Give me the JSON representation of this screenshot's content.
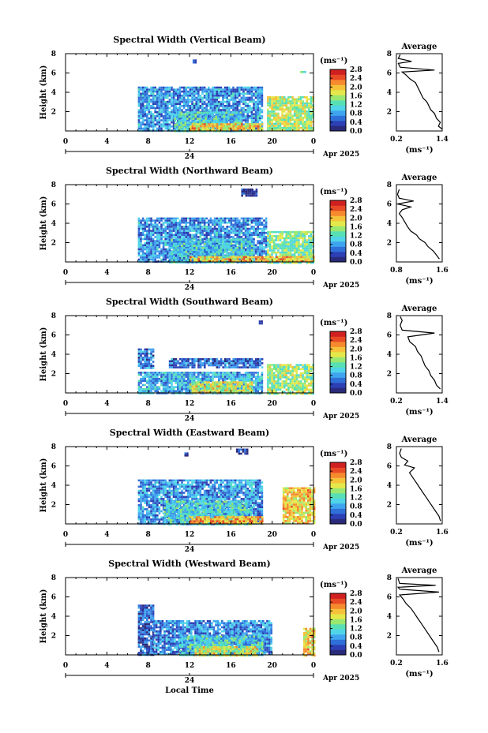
{
  "colors": {
    "scale": [
      "#2a2a7a",
      "#2c3fb4",
      "#2f6fd8",
      "#3fa4ef",
      "#4fd4e8",
      "#58e0b4",
      "#9ae870",
      "#e4e84a",
      "#f5c23a",
      "#f58a2e",
      "#e84a26",
      "#d02020"
    ]
  },
  "figure": {
    "common_xlabel": "Local Time"
  },
  "chart_data": [
    {
      "type": "heatmap",
      "title": "Spectral Width (Vertical Beam)",
      "ylabel": "Height (km)",
      "xlim": [
        0,
        24
      ],
      "ylim": [
        0,
        8
      ],
      "xticks": [
        "0",
        "4",
        "8",
        "12",
        "16",
        "20",
        "0"
      ],
      "yticks": [
        "2",
        "4",
        "6",
        "8"
      ],
      "date_label": "24",
      "month_label": "Apr 2025",
      "colorbar": {
        "unit": "(ms⁻¹)",
        "ticks": [
          "0.0",
          "0.4",
          "0.8",
          "1.2",
          "1.6",
          "2.0",
          "2.4",
          "2.8"
        ],
        "range": [
          0,
          2.8
        ]
      },
      "patches": [
        {
          "t0": 7.0,
          "t1": 19.0,
          "h0": 0.0,
          "h1": 4.6,
          "v": 0.75
        },
        {
          "t0": 10.5,
          "t1": 17.0,
          "h0": 0.0,
          "h1": 2.0,
          "v": 1.1
        },
        {
          "t0": 19.5,
          "t1": 24.0,
          "h0": 0.0,
          "h1": 3.6,
          "v": 1.6
        },
        {
          "t0": 12.0,
          "t1": 19.0,
          "h0": 0.0,
          "h1": 0.8,
          "v": 1.9
        },
        {
          "t0": 12.3,
          "t1": 12.5,
          "h0": 7.1,
          "h1": 7.4,
          "v": 0.2
        },
        {
          "t0": 22.7,
          "t1": 23.2,
          "h0": 6.0,
          "h1": 6.2,
          "v": 1.3
        }
      ],
      "profile": {
        "title": "Average",
        "xlabel": "(ms⁻¹)",
        "xticks": [
          "0.2",
          "1.4"
        ],
        "xlim": [
          0.2,
          1.4
        ],
        "yticks": [
          "2",
          "4",
          "6",
          "8"
        ],
        "ylim": [
          0,
          8
        ],
        "points": [
          [
            1.4,
            0.2
          ],
          [
            1.3,
            0.5
          ],
          [
            1.35,
            0.9
          ],
          [
            1.25,
            1.3
          ],
          [
            1.2,
            1.8
          ],
          [
            1.1,
            2.2
          ],
          [
            1.05,
            2.6
          ],
          [
            1.0,
            3.0
          ],
          [
            0.9,
            3.4
          ],
          [
            0.85,
            3.8
          ],
          [
            0.8,
            4.2
          ],
          [
            0.75,
            4.6
          ],
          [
            0.7,
            5.0
          ],
          [
            0.55,
            5.4
          ],
          [
            0.45,
            5.8
          ],
          [
            0.35,
            6.1
          ],
          [
            1.2,
            6.3
          ],
          [
            0.3,
            6.6
          ],
          [
            0.25,
            7.0
          ],
          [
            0.6,
            7.2
          ],
          [
            0.25,
            7.5
          ],
          [
            0.3,
            7.9
          ]
        ]
      }
    },
    {
      "type": "heatmap",
      "title": "Spectral Width (Northward Beam)",
      "ylabel": "Height (km)",
      "xlim": [
        0,
        24
      ],
      "ylim": [
        0,
        8
      ],
      "xticks": [
        "0",
        "4",
        "8",
        "12",
        "16",
        "20",
        "0"
      ],
      "yticks": [
        "2",
        "4",
        "6",
        "8"
      ],
      "date_label": "24",
      "month_label": "Apr 2025",
      "colorbar": {
        "unit": "(ms⁻¹)",
        "ticks": [
          "0.0",
          "0.4",
          "0.8",
          "1.2",
          "1.6",
          "2.0",
          "2.4",
          "2.8"
        ],
        "range": [
          0,
          2.8
        ]
      },
      "patches": [
        {
          "t0": 7.0,
          "t1": 19.5,
          "h0": 0.0,
          "h1": 4.6,
          "v": 0.75
        },
        {
          "t0": 10.0,
          "t1": 18.0,
          "h0": 0.0,
          "h1": 2.4,
          "v": 1.0
        },
        {
          "t0": 19.5,
          "t1": 24.0,
          "h0": 0.0,
          "h1": 3.2,
          "v": 1.4
        },
        {
          "t0": 12.0,
          "t1": 24.0,
          "h0": 0.0,
          "h1": 0.6,
          "v": 2.0
        },
        {
          "t0": 17.0,
          "t1": 18.5,
          "h0": 6.8,
          "h1": 7.6,
          "v": 0.2
        }
      ],
      "profile": {
        "title": "Average",
        "xlabel": "(ms⁻¹)",
        "xticks": [
          "0.8",
          "1.6"
        ],
        "xlim": [
          0.8,
          1.6
        ],
        "yticks": [
          "2",
          "4",
          "6",
          "8"
        ],
        "ylim": [
          0,
          8
        ],
        "points": [
          [
            1.55,
            0.3
          ],
          [
            1.5,
            0.7
          ],
          [
            1.45,
            1.1
          ],
          [
            1.35,
            1.6
          ],
          [
            1.3,
            2.0
          ],
          [
            1.2,
            2.4
          ],
          [
            1.15,
            2.8
          ],
          [
            1.05,
            3.2
          ],
          [
            1.0,
            3.6
          ],
          [
            0.95,
            4.1
          ],
          [
            0.9,
            4.6
          ],
          [
            0.85,
            5.0
          ],
          [
            0.9,
            5.4
          ],
          [
            1.05,
            5.7
          ],
          [
            0.82,
            6.0
          ],
          [
            1.1,
            6.3
          ],
          [
            0.85,
            6.6
          ],
          [
            0.82,
            7.0
          ],
          [
            0.85,
            7.5
          ]
        ]
      }
    },
    {
      "type": "heatmap",
      "title": "Spectral Width (Southward Beam)",
      "ylabel": "Height (km)",
      "xlim": [
        0,
        24
      ],
      "ylim": [
        0,
        8
      ],
      "xticks": [
        "0",
        "4",
        "8",
        "12",
        "16",
        "20",
        "0"
      ],
      "yticks": [
        "2",
        "4",
        "6",
        "8"
      ],
      "date_label": "24",
      "month_label": "Apr 2025",
      "colorbar": {
        "unit": "(ms⁻¹)",
        "ticks": [
          "0.0",
          "0.4",
          "0.8",
          "1.2",
          "1.6",
          "2.0",
          "2.4",
          "2.8"
        ],
        "range": [
          0,
          2.8
        ]
      },
      "patches": [
        {
          "t0": 7.0,
          "t1": 8.5,
          "h0": 2.6,
          "h1": 4.6,
          "v": 0.6
        },
        {
          "t0": 10.0,
          "t1": 19.0,
          "h0": 2.6,
          "h1": 3.6,
          "v": 0.55
        },
        {
          "t0": 7.0,
          "t1": 19.0,
          "h0": 0.0,
          "h1": 2.2,
          "v": 0.9
        },
        {
          "t0": 12.0,
          "t1": 18.0,
          "h0": 0.0,
          "h1": 1.2,
          "v": 1.7
        },
        {
          "t0": 19.5,
          "t1": 24.0,
          "h0": 0.0,
          "h1": 3.0,
          "v": 1.5
        },
        {
          "t0": 18.7,
          "t1": 18.9,
          "h0": 7.2,
          "h1": 7.5,
          "v": 0.2
        }
      ],
      "profile": {
        "title": "Average",
        "xlabel": "(ms⁻¹)",
        "xticks": [
          "0.2",
          "1.4"
        ],
        "xlim": [
          0.2,
          1.4
        ],
        "yticks": [
          "2",
          "4",
          "6",
          "8"
        ],
        "ylim": [
          0,
          8
        ],
        "points": [
          [
            1.35,
            0.4
          ],
          [
            1.25,
            0.8
          ],
          [
            1.2,
            1.3
          ],
          [
            1.1,
            1.8
          ],
          [
            1.05,
            2.3
          ],
          [
            0.95,
            2.8
          ],
          [
            0.9,
            3.3
          ],
          [
            0.85,
            3.8
          ],
          [
            0.75,
            4.3
          ],
          [
            0.7,
            4.8
          ],
          [
            0.55,
            5.3
          ],
          [
            0.5,
            5.8
          ],
          [
            1.2,
            6.2
          ],
          [
            0.35,
            6.5
          ],
          [
            0.3,
            7.0
          ],
          [
            0.35,
            7.5
          ],
          [
            0.3,
            7.9
          ]
        ]
      }
    },
    {
      "type": "heatmap",
      "title": "Spectral Width (Eastward Beam)",
      "ylabel": "Height (km)",
      "xlim": [
        0,
        24
      ],
      "ylim": [
        0,
        8
      ],
      "xticks": [
        "0",
        "4",
        "8",
        "12",
        "16",
        "20",
        "0"
      ],
      "yticks": [
        "2",
        "4",
        "6",
        "8"
      ],
      "date_label": "24",
      "month_label": "Apr 2025",
      "colorbar": {
        "unit": "(ms⁻¹)",
        "ticks": [
          "0.0",
          "0.4",
          "0.8",
          "1.2",
          "1.6",
          "2.0",
          "2.4",
          "2.8"
        ],
        "range": [
          0,
          2.8
        ]
      },
      "patches": [
        {
          "t0": 7.0,
          "t1": 19.0,
          "h0": 0.0,
          "h1": 4.6,
          "v": 0.75
        },
        {
          "t0": 9.5,
          "t1": 18.0,
          "h0": 0.0,
          "h1": 2.4,
          "v": 1.1
        },
        {
          "t0": 21.0,
          "t1": 24.0,
          "h0": 0.0,
          "h1": 3.8,
          "v": 1.9
        },
        {
          "t0": 12.0,
          "t1": 19.0,
          "h0": 0.0,
          "h1": 0.8,
          "v": 2.1
        },
        {
          "t0": 16.5,
          "t1": 17.5,
          "h0": 7.2,
          "h1": 7.8,
          "v": 0.2
        },
        {
          "t0": 11.5,
          "t1": 11.7,
          "h0": 7.0,
          "h1": 7.4,
          "v": 0.2
        }
      ],
      "profile": {
        "title": "Average",
        "xlabel": "(ms⁻¹)",
        "xticks": [
          "0.2",
          "1.6"
        ],
        "xlim": [
          0.2,
          1.6
        ],
        "yticks": [
          "2",
          "4",
          "6",
          "8"
        ],
        "ylim": [
          0,
          8
        ],
        "points": [
          [
            1.55,
            0.3
          ],
          [
            1.5,
            0.8
          ],
          [
            1.4,
            1.3
          ],
          [
            1.3,
            1.8
          ],
          [
            1.2,
            2.3
          ],
          [
            1.1,
            2.8
          ],
          [
            1.0,
            3.3
          ],
          [
            0.9,
            3.8
          ],
          [
            0.8,
            4.3
          ],
          [
            0.7,
            4.8
          ],
          [
            0.6,
            5.3
          ],
          [
            0.75,
            5.8
          ],
          [
            0.45,
            6.1
          ],
          [
            0.55,
            6.5
          ],
          [
            0.35,
            6.9
          ],
          [
            0.3,
            7.3
          ],
          [
            0.35,
            7.8
          ]
        ]
      }
    },
    {
      "type": "heatmap",
      "title": "Spectral Width (Westward Beam)",
      "ylabel": "Height (km)",
      "xlim": [
        0,
        24
      ],
      "ylim": [
        0,
        8
      ],
      "xticks": [
        "0",
        "4",
        "8",
        "12",
        "16",
        "20",
        "0"
      ],
      "yticks": [
        "2",
        "4",
        "6",
        "8"
      ],
      "date_label": "24",
      "month_label": "Apr 2025",
      "colorbar": {
        "unit": "(ms⁻¹)",
        "ticks": [
          "0.0",
          "0.4",
          "0.8",
          "1.2",
          "1.6",
          "2.0",
          "2.4",
          "2.8"
        ],
        "range": [
          0,
          2.8
        ]
      },
      "patches": [
        {
          "t0": 7.0,
          "t1": 8.5,
          "h0": 0.0,
          "h1": 5.2,
          "v": 0.5
        },
        {
          "t0": 8.5,
          "t1": 20.0,
          "h0": 0.0,
          "h1": 3.6,
          "v": 0.7
        },
        {
          "t0": 11.0,
          "t1": 19.0,
          "h0": 0.0,
          "h1": 2.0,
          "v": 1.1
        },
        {
          "t0": 12.5,
          "t1": 18.5,
          "h0": 0.0,
          "h1": 0.9,
          "v": 1.7
        },
        {
          "t0": 23.0,
          "t1": 24.0,
          "h0": 0.0,
          "h1": 2.8,
          "v": 1.9
        }
      ],
      "profile": {
        "title": "Average",
        "xlabel": "(ms⁻¹)",
        "xticks": [
          "0.2",
          "1.6"
        ],
        "xlim": [
          0.2,
          1.6
        ],
        "yticks": [
          "2",
          "4",
          "6",
          "8"
        ],
        "ylim": [
          0,
          8
        ],
        "points": [
          [
            1.5,
            0.3
          ],
          [
            1.45,
            0.8
          ],
          [
            1.35,
            1.3
          ],
          [
            1.25,
            1.8
          ],
          [
            1.15,
            2.3
          ],
          [
            1.05,
            2.8
          ],
          [
            0.95,
            3.3
          ],
          [
            0.85,
            3.8
          ],
          [
            0.75,
            4.3
          ],
          [
            0.65,
            4.8
          ],
          [
            0.5,
            5.3
          ],
          [
            0.4,
            5.8
          ],
          [
            0.3,
            6.2
          ],
          [
            1.5,
            6.5
          ],
          [
            0.3,
            6.8
          ],
          [
            0.25,
            7.0
          ],
          [
            1.4,
            7.2
          ],
          [
            0.3,
            7.4
          ],
          [
            0.25,
            7.9
          ]
        ]
      }
    }
  ]
}
